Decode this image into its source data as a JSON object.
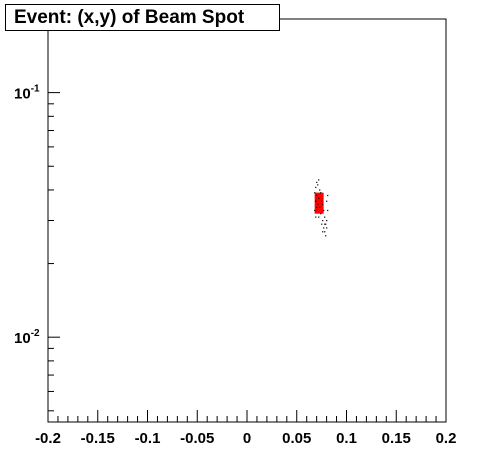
{
  "chart_data": {
    "type": "scatter",
    "title": "Event: (x,y) of Beam Spot",
    "xlabel": "",
    "ylabel": "",
    "xlim": [
      -0.2,
      0.2
    ],
    "ylim": [
      0.0045,
      0.2
    ],
    "y_scale": "log",
    "grid": false,
    "x_tick_labels": [
      "-0.2",
      "-0.15",
      "-0.1",
      "-0.05",
      "0",
      "0.05",
      "0.1",
      "0.15",
      "0.2"
    ],
    "x_tick_values": [
      -0.2,
      -0.15,
      -0.1,
      -0.05,
      0,
      0.05,
      0.1,
      0.15,
      0.2
    ],
    "y_tick_labels": [
      {
        "base": "10",
        "exp": "-1",
        "value": 0.1
      },
      {
        "base": "10",
        "exp": "-2",
        "value": 0.01
      }
    ],
    "colors": {
      "marker": "#000000",
      "dense_region": "#ff0000",
      "frame": "#000000"
    },
    "series": [
      {
        "points": [
          [
            0.07,
            0.043
          ],
          [
            0.072,
            0.044
          ],
          [
            0.069,
            0.041
          ],
          [
            0.071,
            0.042
          ],
          [
            0.073,
            0.04
          ],
          [
            0.068,
            0.039
          ],
          [
            0.07,
            0.038
          ],
          [
            0.074,
            0.039
          ],
          [
            0.072,
            0.037
          ],
          [
            0.069,
            0.036
          ],
          [
            0.075,
            0.036
          ],
          [
            0.071,
            0.035
          ],
          [
            0.073,
            0.034
          ],
          [
            0.076,
            0.035
          ],
          [
            0.07,
            0.034
          ],
          [
            0.077,
            0.033
          ],
          [
            0.074,
            0.032
          ],
          [
            0.078,
            0.031
          ],
          [
            0.072,
            0.031
          ],
          [
            0.076,
            0.03
          ],
          [
            0.079,
            0.029
          ],
          [
            0.075,
            0.029
          ],
          [
            0.077,
            0.028
          ],
          [
            0.08,
            0.028
          ],
          [
            0.078,
            0.027
          ],
          [
            0.076,
            0.027
          ],
          [
            0.079,
            0.026
          ],
          [
            0.081,
            0.033
          ],
          [
            0.08,
            0.036
          ],
          [
            0.081,
            0.038
          ],
          [
            0.068,
            0.033
          ],
          [
            0.069,
            0.031
          ],
          [
            0.08,
            0.03
          ],
          [
            0.078,
            0.029
          ]
        ]
      }
    ],
    "dense_region": {
      "x": [
        0.068,
        0.077
      ],
      "y": [
        0.032,
        0.039
      ]
    }
  }
}
